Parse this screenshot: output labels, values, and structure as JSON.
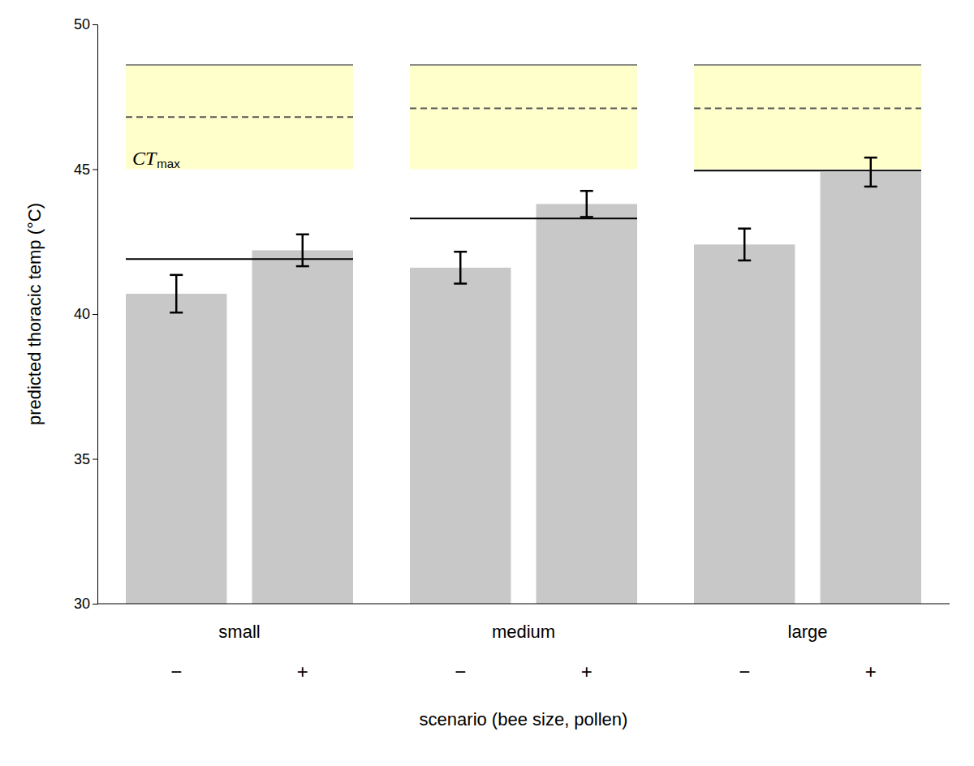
{
  "chart_data": {
    "type": "bar",
    "categories": [
      "−",
      "+",
      "−",
      "+",
      "−",
      "+"
    ],
    "groups": [
      "small",
      "medium",
      "large"
    ],
    "values": [
      40.7,
      42.2,
      41.6,
      43.8,
      42.4,
      44.9
    ],
    "errors": [
      0.65,
      0.55,
      0.55,
      0.45,
      0.55,
      0.5
    ],
    "color": "#c8c8c8",
    "xlabel": "scenario (bee size, pollen)",
    "ylabel": "predicted thoracic temp (°C)",
    "ylim": [
      30,
      50
    ],
    "yticks": [
      30,
      35,
      40,
      45,
      50
    ],
    "grid": false,
    "band": {
      "low": 45.0,
      "high": 48.6,
      "color": "#ffffcc"
    },
    "solid_lines": [
      41.9,
      43.3,
      44.95
    ],
    "dashed_lines": [
      46.8,
      47.1,
      47.1
    ],
    "annotation": {
      "text": "CT",
      "subscript": "max"
    }
  }
}
